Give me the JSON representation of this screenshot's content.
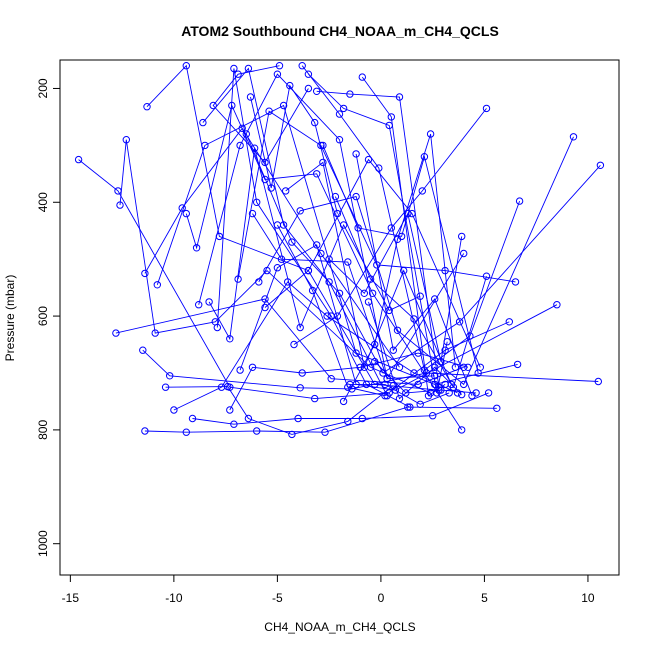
{
  "chart_data": {
    "type": "line",
    "title": "ATOM2 Southbound CH4_NOAA_m_CH4_QCLS",
    "xlabel": "CH4_NOAA_m_CH4_QCLS",
    "ylabel": "Pressure (mbar)",
    "xlim": [
      -15.5,
      11.5
    ],
    "ylim": [
      1055,
      150
    ],
    "y_reversed": true,
    "x_ticks": [
      -15,
      -10,
      -5,
      0,
      5,
      10
    ],
    "y_ticks": [
      200,
      400,
      600,
      800,
      1000
    ],
    "grid": false,
    "legend": "none",
    "series_color": "#0000ff",
    "marker": "open-circle",
    "series": [
      {
        "x": [
          -14.6,
          -12.7,
          -7.3,
          -3.2,
          0.4
        ],
        "y": [
          325,
          380,
          725,
          745,
          735
        ]
      },
      {
        "x": [
          -12.6,
          -12.3,
          -10.9,
          -8.0,
          -5.5,
          -0.5,
          2.4
        ],
        "y": [
          405,
          290,
          630,
          610,
          520,
          690,
          735
        ]
      },
      {
        "x": [
          -12.8,
          -5.6,
          -2.4,
          1.8,
          4.0
        ],
        "y": [
          630,
          570,
          710,
          720,
          690
        ]
      },
      {
        "x": [
          -11.4,
          -9.4,
          -6.0,
          -2.7,
          1.3,
          5.6
        ],
        "y": [
          802,
          804,
          802,
          804,
          760,
          762
        ]
      },
      {
        "x": [
          -11.5,
          -10.2,
          -3.9,
          -1.4,
          2.2,
          10.5
        ],
        "y": [
          660,
          705,
          726,
          728,
          700,
          715
        ]
      },
      {
        "x": [
          -11.3,
          -9.4,
          -7.8,
          -3.5,
          -0.3,
          2.8
        ],
        "y": [
          232,
          160,
          460,
          520,
          720,
          730
        ]
      },
      {
        "x": [
          -11.4,
          -9.6,
          -6.7,
          -2.9,
          0.9
        ],
        "y": [
          525,
          410,
          270,
          490,
          690
        ]
      },
      {
        "x": [
          -10.8,
          -8.5,
          -4.7,
          -1.2,
          2.6,
          6.6
        ],
        "y": [
          545,
          300,
          230,
          665,
          720,
          685
        ]
      },
      {
        "x": [
          -10.0,
          -7.7,
          -4.5,
          -2.6,
          1.6,
          3.7
        ],
        "y": [
          765,
          725,
          540,
          600,
          700,
          735
        ]
      },
      {
        "x": [
          -10.4,
          -7.4,
          -6.4,
          -4.3,
          -1.6,
          0.6
        ],
        "y": [
          725,
          724,
          780,
          808,
          785,
          722
        ]
      },
      {
        "x": [
          -9.1,
          -7.1,
          -4.0,
          -0.9,
          2.5,
          5.2
        ],
        "y": [
          780,
          790,
          780,
          780,
          775,
          735
        ]
      },
      {
        "x": [
          -9.4,
          -8.9,
          -7.2,
          -5.6,
          -3.1,
          -0.4,
          3.9
        ],
        "y": [
          420,
          480,
          230,
          360,
          350,
          560,
          800
        ]
      },
      {
        "x": [
          -8.6,
          -6.4,
          -4.7,
          -2.5,
          0.3
        ],
        "y": [
          260,
          165,
          440,
          540,
          740
        ]
      },
      {
        "x": [
          -8.8,
          -6.8,
          -5.0,
          -2.0,
          0.3,
          4.0
        ],
        "y": [
          580,
          300,
          175,
          290,
          710,
          490
        ]
      },
      {
        "x": [
          -8.3,
          -7.3,
          -6.1,
          -3.9,
          -1.8,
          0.4,
          1.9
        ],
        "y": [
          575,
          640,
          305,
          620,
          440,
          590,
          565
        ]
      },
      {
        "x": [
          -7.9,
          -7.1,
          -6.0,
          -2.4,
          -0.7,
          1.4
        ],
        "y": [
          620,
          165,
          400,
          600,
          720,
          760
        ]
      },
      {
        "x": [
          -7.3,
          -6.2,
          -3.8,
          -1.0,
          1.8,
          4.2
        ],
        "y": [
          765,
          690,
          700,
          690,
          665,
          690
        ]
      },
      {
        "x": [
          -6.9,
          -5.4,
          -2.9,
          -0.2,
          3.1,
          6.5
        ],
        "y": [
          535,
          240,
          300,
          510,
          520,
          540
        ]
      },
      {
        "x": [
          -6.8,
          -5.0,
          -3.1,
          -1.2,
          0.7,
          8.5
        ],
        "y": [
          695,
          515,
          475,
          720,
          730,
          580
        ]
      },
      {
        "x": [
          -6.5,
          -4.3,
          -2.0,
          0.1,
          3.8,
          10.6
        ],
        "y": [
          280,
          470,
          560,
          700,
          610,
          335
        ]
      },
      {
        "x": [
          -6.2,
          -4.8,
          -1.6,
          0.3,
          2.6
        ],
        "y": [
          420,
          500,
          505,
          710,
          705
        ]
      },
      {
        "x": [
          -5.9,
          -3.9,
          -1.2,
          0.8,
          4.0,
          9.3
        ],
        "y": [
          540,
          415,
          390,
          625,
          720,
          285
        ]
      },
      {
        "x": [
          -5.6,
          -3.5,
          -0.6,
          1.5,
          4.8
        ],
        "y": [
          585,
          520,
          325,
          420,
          690
        ]
      },
      {
        "x": [
          -5.0,
          -3.3,
          -1.6,
          0.2,
          3.1,
          6.2
        ],
        "y": [
          440,
          555,
          725,
          740,
          660,
          610
        ]
      },
      {
        "x": [
          -4.6,
          -2.8,
          -0.8,
          1.1,
          3.4
        ],
        "y": [
          380,
          330,
          690,
          520,
          720
        ]
      },
      {
        "x": [
          -4.2,
          -2.1,
          0.5,
          2.0,
          5.1
        ],
        "y": [
          650,
          600,
          445,
          380,
          235
        ]
      },
      {
        "x": [
          -3.8,
          -2.0,
          -0.1,
          2.1,
          4.3,
          6.7
        ],
        "y": [
          160,
          245,
          340,
          695,
          635,
          398
        ]
      },
      {
        "x": [
          -3.5,
          -1.8,
          0.4,
          2.7,
          3.2
        ],
        "y": [
          175,
          235,
          265,
          735,
          645
        ]
      },
      {
        "x": [
          -3.1,
          -1.5,
          0.9,
          2.8
        ],
        "y": [
          205,
          210,
          215,
          725
        ]
      },
      {
        "x": [
          -2.8,
          -1.1,
          1.0,
          2.1,
          4.7
        ],
        "y": [
          300,
          445,
          460,
          320,
          700
        ]
      },
      {
        "x": [
          -2.5,
          -0.8,
          1.3,
          2.9,
          3.9
        ],
        "y": [
          500,
          560,
          420,
          680,
          460
        ]
      },
      {
        "x": [
          -2.2,
          -0.5,
          1.6,
          3.5,
          5.1
        ],
        "y": [
          390,
          535,
          605,
          725,
          530
        ]
      },
      {
        "x": [
          -1.8,
          -0.3,
          0.8,
          2.4,
          3.6
        ],
        "y": [
          750,
          650,
          465,
          280,
          690
        ]
      },
      {
        "x": [
          -1.5,
          0.2,
          1.9,
          3.3
        ],
        "y": [
          720,
          720,
          755,
          735
        ]
      },
      {
        "x": [
          -1.2,
          0.6,
          2.6,
          4.4
        ],
        "y": [
          315,
          660,
          570,
          740
        ]
      },
      {
        "x": [
          -0.9,
          0.5,
          2.3,
          3.1
        ],
        "y": [
          180,
          250,
          740,
          720
        ]
      },
      {
        "x": [
          -0.6,
          0.9,
          2.6,
          3.9
        ],
        "y": [
          575,
          745,
          690,
          738
        ]
      },
      {
        "x": [
          -0.3,
          1.2,
          2.9,
          4.6
        ],
        "y": [
          680,
          735,
          730,
          735
        ]
      },
      {
        "x": [
          -4.9,
          -6.9,
          -8.1,
          -5.6,
          -3.5
        ],
        "y": [
          160,
          175,
          230,
          330,
          200
        ]
      },
      {
        "x": [
          -6.3,
          -5.3,
          -4.4,
          -3.2,
          -2.1
        ],
        "y": [
          215,
          375,
          195,
          260,
          420
        ]
      }
    ]
  }
}
